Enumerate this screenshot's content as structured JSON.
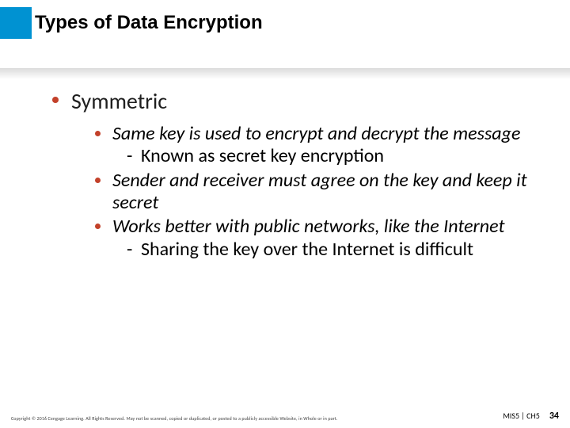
{
  "accent_block_color": "#0092d2",
  "bullet_color": "#c3412a",
  "title": "Types of Data Encryption",
  "level1": {
    "text": "Symmetric"
  },
  "level2": {
    "item0": "Same key is used to encrypt and decrypt the message",
    "item0_sub0": "Known as secret key encryption",
    "item1": "Sender and receiver must agree on the key and keep it secret",
    "item2": "Works better with public networks, like the Internet",
    "item2_sub0": "Sharing the key over the Internet is difficult"
  },
  "footer": {
    "copyright": "Copyright © 2016 Cengage Learning. All Rights Reserved. May not be scanned, copied or duplicated, or posted to a publicly accessible Website, in Whole or in part.",
    "course": "MIS5 | CH5",
    "page": "34"
  }
}
